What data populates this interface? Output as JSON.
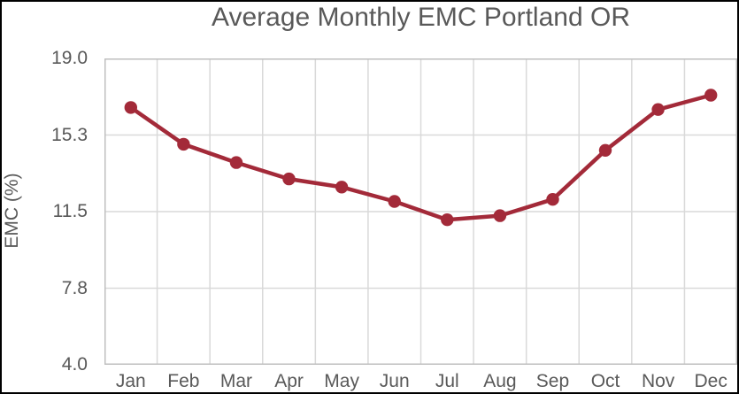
{
  "frame": {
    "border_color": "#000000",
    "background": "#ffffff"
  },
  "chart_data": {
    "type": "line",
    "title": "Average Monthly EMC Portland OR",
    "xlabel": "",
    "ylabel": "EMC (%)",
    "categories": [
      "Jan",
      "Feb",
      "Mar",
      "Apr",
      "May",
      "Jun",
      "Jul",
      "Aug",
      "Sep",
      "Oct",
      "Nov",
      "Dec"
    ],
    "series": [
      {
        "name": "Average Monthly EMC",
        "values": [
          16.6,
          14.8,
          13.9,
          13.1,
          12.7,
          12.0,
          11.1,
          11.3,
          12.1,
          14.5,
          16.5,
          17.2
        ]
      }
    ],
    "ylim": [
      4.0,
      19.0
    ],
    "yticks": [
      19.0,
      15.25,
      11.5,
      7.75,
      4.0
    ],
    "ytick_labels": [
      "19.0",
      "15.3",
      "11.5",
      "7.8",
      "4.0"
    ],
    "grid": true,
    "legend": "none",
    "colors": {
      "line": "#A32A39",
      "marker": "#A32A39",
      "gridline": "#D9D9D9",
      "plot_border": "#BFBFBF",
      "text": "#595959"
    }
  }
}
